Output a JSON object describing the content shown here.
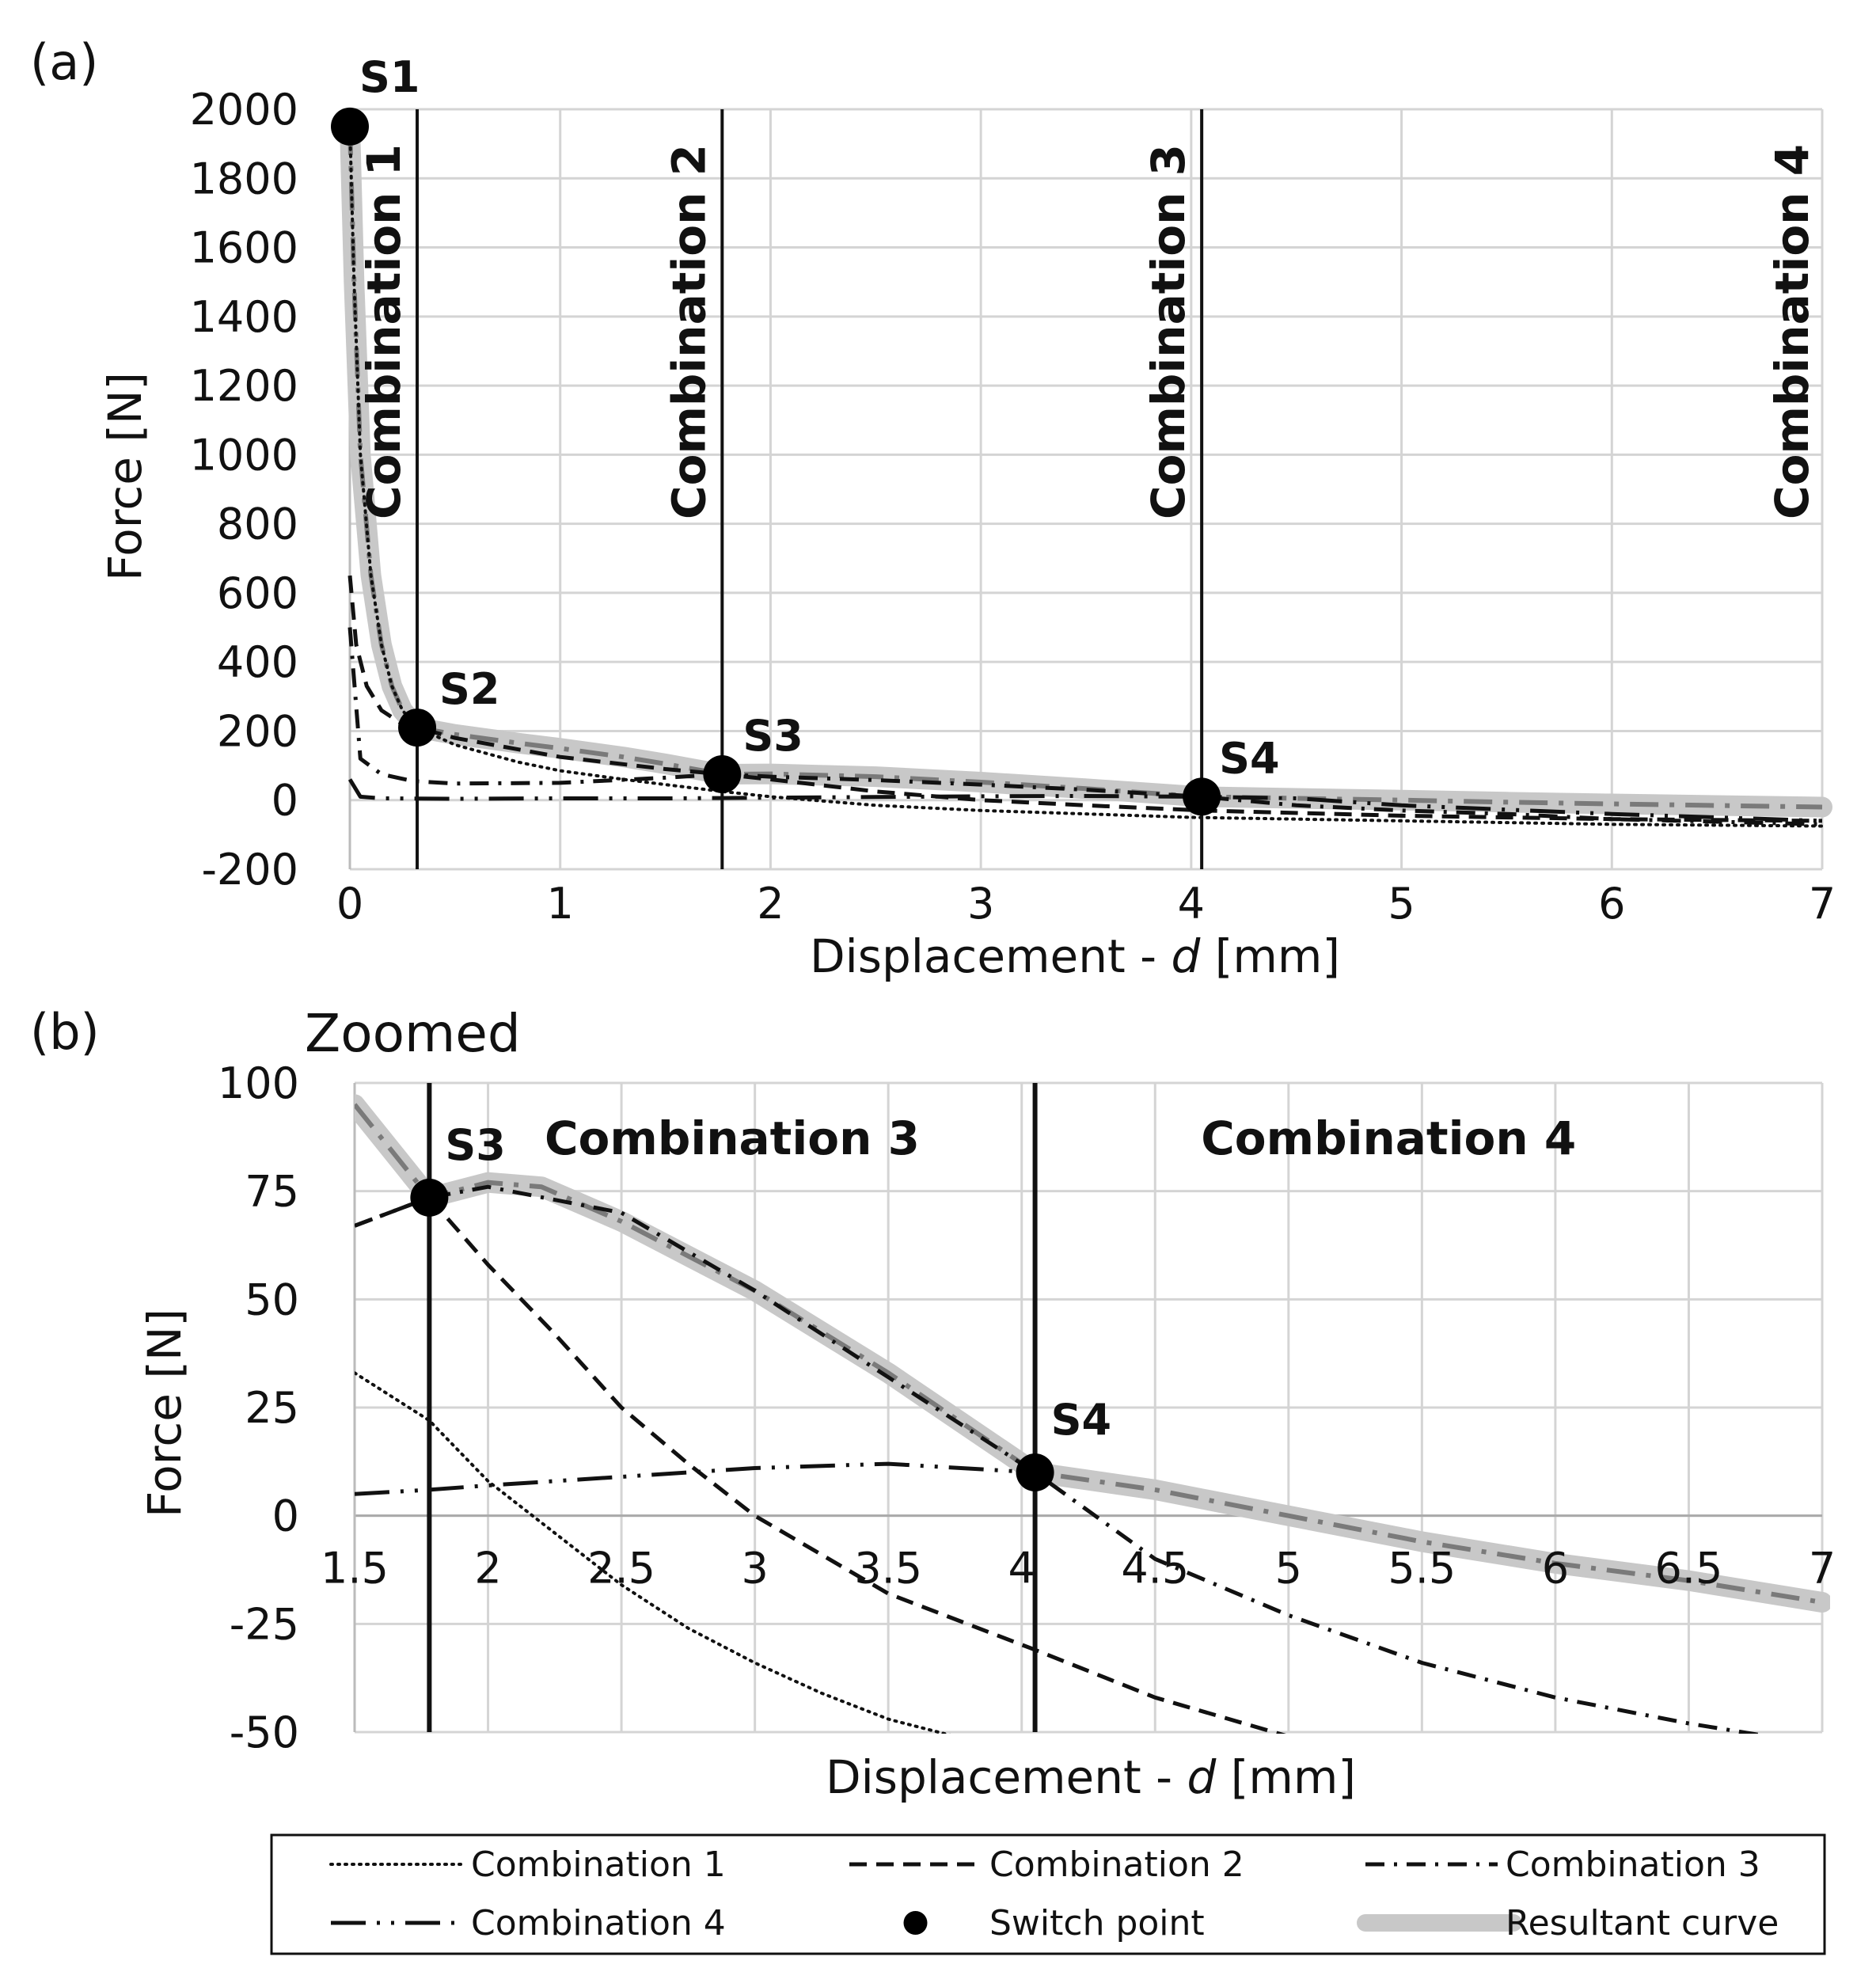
{
  "chart_data": [
    {
      "type": "line",
      "panel_label": "(a)",
      "xlabel": "Displacement - ",
      "xlabel_italic": "d",
      "xlabel_unit": " [mm]",
      "ylabel": "Force [N]",
      "xlim": [
        0,
        7
      ],
      "ylim": [
        -200,
        2000
      ],
      "x_ticks": [
        0,
        1,
        2,
        3,
        4,
        5,
        6,
        7
      ],
      "y_ticks": [
        -200,
        0,
        200,
        400,
        600,
        800,
        1000,
        1200,
        1400,
        1600,
        1800,
        2000
      ],
      "grid": true,
      "boundaries": [
        {
          "x": 0.32,
          "label": "Combination 1"
        },
        {
          "x": 1.77,
          "label": "Combination 2"
        },
        {
          "x": 4.05,
          "label": "Combination 3"
        },
        {
          "x": 7.0,
          "label": "Combination 4",
          "no_line": true
        }
      ],
      "switch_points": [
        {
          "label": "S1",
          "x": 0.0,
          "y": 1950
        },
        {
          "label": "S2",
          "x": 0.32,
          "y": 210
        },
        {
          "label": "S3",
          "x": 1.77,
          "y": 75
        },
        {
          "label": "S4",
          "x": 4.05,
          "y": 10
        }
      ],
      "series": [
        {
          "name": "Combination 1",
          "style": "dotted",
          "x": [
            0.0,
            0.02,
            0.05,
            0.1,
            0.15,
            0.2,
            0.25,
            0.32,
            0.5,
            0.8,
            1.0,
            1.3,
            1.5,
            1.77,
            2.0,
            2.5,
            3.0,
            4.0,
            5.0,
            6.0,
            7.0
          ],
          "y": [
            1950,
            1500,
            1000,
            650,
            450,
            330,
            260,
            210,
            160,
            110,
            85,
            60,
            45,
            25,
            10,
            -15,
            -30,
            -50,
            -60,
            -70,
            -75
          ]
        },
        {
          "name": "Combination 2",
          "style": "dashed",
          "x": [
            0.0,
            0.03,
            0.08,
            0.15,
            0.25,
            0.32,
            0.5,
            1.0,
            1.5,
            1.77,
            2.0,
            2.5,
            3.0,
            3.5,
            4.05,
            5.0,
            6.0,
            7.0
          ],
          "y": [
            650,
            450,
            330,
            260,
            220,
            210,
            180,
            125,
            90,
            75,
            60,
            25,
            0,
            -15,
            -30,
            -45,
            -55,
            -60
          ]
        },
        {
          "name": "Combination 3",
          "style": "dashdot",
          "x": [
            0.0,
            0.05,
            0.15,
            0.3,
            0.5,
            1.0,
            1.5,
            1.77,
            2.0,
            2.5,
            3.0,
            3.5,
            4.05,
            4.5,
            5.0,
            5.5,
            6.0,
            7.0
          ],
          "y": [
            500,
            120,
            75,
            55,
            48,
            50,
            65,
            75,
            68,
            58,
            45,
            30,
            10,
            -15,
            -30,
            -40,
            -55,
            -70
          ]
        },
        {
          "name": "Combination 4",
          "style": "longdashdot",
          "x": [
            0.0,
            0.05,
            0.15,
            0.5,
            1.0,
            1.5,
            1.77,
            2.5,
            3.0,
            3.5,
            4.05,
            4.5,
            5.0,
            6.0,
            7.0
          ],
          "y": [
            60,
            10,
            5,
            4,
            5,
            5,
            6,
            9,
            11,
            12,
            10,
            5,
            -15,
            -40,
            -60
          ]
        },
        {
          "name": "Resultant curve",
          "style": "resultant",
          "x": [
            0.0,
            0.02,
            0.05,
            0.1,
            0.15,
            0.2,
            0.25,
            0.32,
            0.5,
            0.8,
            1.0,
            1.3,
            1.5,
            1.77,
            2.0,
            2.5,
            3.0,
            3.5,
            4.05,
            4.5,
            5.0,
            5.5,
            6.0,
            7.0
          ],
          "y": [
            1950,
            1500,
            1000,
            650,
            450,
            330,
            260,
            210,
            190,
            165,
            150,
            125,
            105,
            75,
            76,
            68,
            52,
            33,
            10,
            5,
            0,
            -6,
            -11,
            -20
          ]
        }
      ]
    },
    {
      "type": "line",
      "panel_label": "(b)",
      "title": "Zoomed",
      "xlabel": "Displacement - ",
      "xlabel_italic": "d",
      "xlabel_unit": " [mm]",
      "ylabel": "Force [N]",
      "xlim": [
        1.5,
        7
      ],
      "ylim": [
        -50,
        100
      ],
      "x_ticks": [
        1.5,
        2,
        2.5,
        3,
        3.5,
        4,
        4.5,
        5,
        5.5,
        6,
        6.5,
        7
      ],
      "x_tick_labels": [
        "1.5",
        "2",
        "2.5",
        "3",
        "3.5",
        "4",
        "4.5",
        "5",
        "5.5",
        "6",
        "6.5",
        "7"
      ],
      "y_ticks": [
        -50,
        -25,
        0,
        25,
        50,
        75,
        100
      ],
      "grid": true,
      "region_labels": [
        {
          "label": "Combination 3",
          "x_from": 1.78,
          "x_to": 4.05
        },
        {
          "label": "Combination 4",
          "x_from": 4.05,
          "x_to": 6.7
        }
      ],
      "boundaries": [
        {
          "x": 1.78
        },
        {
          "x": 4.05
        }
      ],
      "switch_points": [
        {
          "label": "S3",
          "x": 1.78,
          "y": 73.5
        },
        {
          "label": "S4",
          "x": 4.05,
          "y": 10
        }
      ],
      "series": [
        {
          "name": "Combination 1",
          "style": "dotted",
          "x": [
            1.5,
            1.78,
            2.0,
            2.25,
            2.5,
            2.75,
            3.0,
            3.25,
            3.5,
            3.75
          ],
          "y": [
            33,
            22,
            8,
            -4,
            -16,
            -26,
            -34,
            -41,
            -47,
            -51
          ]
        },
        {
          "name": "Combination 2",
          "style": "dashed",
          "x": [
            1.5,
            1.78,
            2.0,
            2.25,
            2.5,
            2.75,
            3.0,
            3.5,
            4.05,
            4.5,
            5.0
          ],
          "y": [
            67,
            73.5,
            58,
            42,
            25,
            12,
            0,
            -18,
            -31,
            -42,
            -51
          ]
        },
        {
          "name": "Combination 3",
          "style": "dashdot",
          "x": [
            1.5,
            1.78,
            2.0,
            2.5,
            3.0,
            3.5,
            4.05,
            4.5,
            5.0,
            5.5,
            6.0,
            6.5,
            6.8
          ],
          "y": [
            67,
            73.5,
            76,
            70,
            52,
            32,
            10,
            -10,
            -23,
            -34,
            -42,
            -48,
            -51
          ]
        },
        {
          "name": "Combination 4",
          "style": "longdashdot",
          "x": [
            1.5,
            1.78,
            2.0,
            2.5,
            3.0,
            3.5,
            4.05
          ],
          "y": [
            5,
            6,
            7,
            9,
            11,
            12,
            10
          ]
        },
        {
          "name": "Resultant curve",
          "style": "resultant",
          "x": [
            1.5,
            1.78,
            2.0,
            2.2,
            2.5,
            3.0,
            3.5,
            4.05,
            4.5,
            5.0,
            5.5,
            6.0,
            6.5,
            7.0
          ],
          "y": [
            95,
            73.5,
            77,
            76,
            68,
            52,
            33,
            10,
            6,
            0,
            -6,
            -11,
            -15,
            -20
          ]
        }
      ]
    }
  ],
  "legend": {
    "items": [
      {
        "label": "Combination 1",
        "style": "dotted"
      },
      {
        "label": "Combination 2",
        "style": "dashed"
      },
      {
        "label": "Combination 3",
        "style": "dashdot"
      },
      {
        "label": "Combination 4",
        "style": "longdashdot"
      },
      {
        "label": "Switch point",
        "style": "marker"
      },
      {
        "label": "Resultant curve",
        "style": "resultant"
      }
    ]
  }
}
